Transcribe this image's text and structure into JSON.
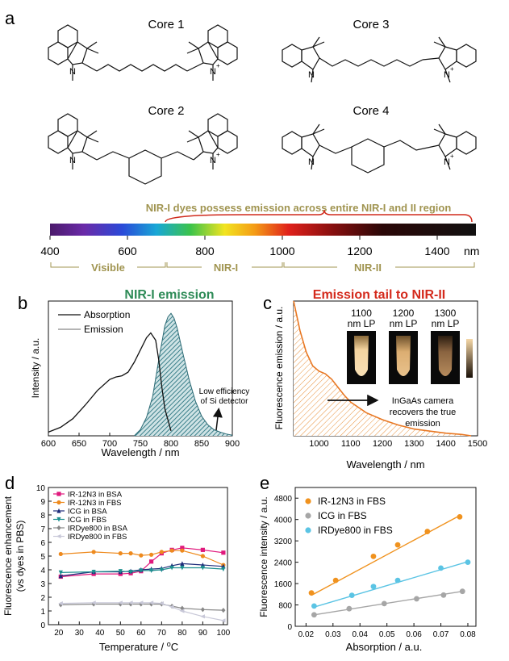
{
  "panels": {
    "a": {
      "letter": "a",
      "cores": [
        "Core 1",
        "Core 2",
        "Core 3",
        "Core 4"
      ],
      "banner": "NIR-I dyes possess emission across entire NIR-I and II region",
      "spectrum_ticks": [
        "400",
        "600",
        "800",
        "1000",
        "1200",
        "1400"
      ],
      "unit": "nm",
      "regions": [
        "Visible",
        "NIR-I",
        "NIR-II"
      ],
      "atom_n": "N",
      "atom_nplus": "N",
      "plus": "+"
    },
    "b": {
      "letter": "b",
      "title": "NIR-I emission",
      "xlabel": "Wavelength / nm",
      "ylabel": "Intensity / a.u.",
      "legend": [
        "Absorption",
        "Emission"
      ],
      "annotation_line1": "Low efficiency",
      "annotation_line2": "of Si detector",
      "colors": {
        "title": "#2e8b57",
        "fill": "#4a8f99"
      }
    },
    "c": {
      "letter": "c",
      "title": "Emission tail to NIR-II",
      "xlabel": "Wavelength / nm",
      "ylabel": "Fluorescence emission / a.u.",
      "tubes": [
        {
          "line1": "1100",
          "line2": "nm LP"
        },
        {
          "line1": "1200",
          "line2": "nm LP"
        },
        {
          "line1": "1300",
          "line2": "nm LP"
        }
      ],
      "annotation": [
        "InGaAs camera",
        "recovers the true",
        "emission"
      ],
      "colors": {
        "title": "#d42a1c",
        "curve": "#e87722"
      }
    },
    "d": {
      "letter": "d",
      "xlabel_main": "Temperature / ",
      "xlabel_sup": "o",
      "xlabel_end": "C",
      "ylabel_line1": "Fluorescence enhancement",
      "ylabel_line2": "(vs dyes in PBS)"
    },
    "e": {
      "letter": "e",
      "xlabel": "Absorption / a.u.",
      "ylabel": "Fluorescence intensity / a.u."
    }
  },
  "chart_data": [
    {
      "id": "b",
      "type": "line",
      "x_ticks": [
        600,
        650,
        700,
        750,
        800,
        850,
        900
      ],
      "xlim": [
        600,
        900
      ],
      "ylim": [
        0,
        1.1
      ],
      "series": [
        {
          "name": "Absorption",
          "color": "#111111",
          "x": [
            600,
            620,
            640,
            660,
            680,
            700,
            710,
            720,
            730,
            740,
            750,
            760,
            767,
            775,
            780,
            785,
            790,
            800
          ],
          "y": [
            0.03,
            0.07,
            0.14,
            0.25,
            0.37,
            0.46,
            0.48,
            0.49,
            0.52,
            0.6,
            0.7,
            0.8,
            0.84,
            0.78,
            0.62,
            0.4,
            0.22,
            0.04
          ]
        },
        {
          "name": "Emission",
          "color": "#888888",
          "x": [
            740,
            750,
            760,
            770,
            780,
            790,
            795,
            800,
            805,
            810,
            820,
            830,
            840,
            850,
            860,
            870,
            880,
            890,
            900
          ],
          "y": [
            0.0,
            0.05,
            0.15,
            0.32,
            0.62,
            0.9,
            0.97,
            1.0,
            0.96,
            0.88,
            0.66,
            0.45,
            0.28,
            0.16,
            0.09,
            0.05,
            0.03,
            0.015,
            0.005
          ]
        }
      ]
    },
    {
      "id": "c",
      "type": "area",
      "x_ticks": [
        1000,
        1100,
        1200,
        1300,
        1400,
        1500
      ],
      "xlim": [
        920,
        1500
      ],
      "ylim": [
        0,
        1
      ],
      "series": [
        {
          "name": "",
          "x": [
            920,
            940,
            960,
            980,
            1000,
            1020,
            1040,
            1060,
            1080,
            1100,
            1150,
            1200,
            1250,
            1300,
            1350,
            1400,
            1450,
            1480
          ],
          "y": [
            1.0,
            0.78,
            0.62,
            0.52,
            0.48,
            0.46,
            0.42,
            0.36,
            0.3,
            0.25,
            0.17,
            0.12,
            0.08,
            0.05,
            0.035,
            0.02,
            0.01,
            0.0
          ]
        }
      ]
    },
    {
      "id": "d",
      "type": "line",
      "x_ticks": [
        20,
        30,
        40,
        50,
        60,
        70,
        80,
        90,
        100
      ],
      "y_ticks": [
        0,
        1,
        2,
        3,
        4,
        5,
        6,
        7,
        8,
        9,
        10
      ],
      "xlim": [
        15,
        102
      ],
      "ylim": [
        0,
        10
      ],
      "series": [
        {
          "name": "IR-12N3 in BSA",
          "color": "#e0197d",
          "marker": "square",
          "x": [
            21,
            37,
            50,
            55,
            60,
            65,
            70,
            75,
            80,
            90,
            100
          ],
          "y": [
            3.5,
            3.7,
            3.7,
            3.75,
            3.9,
            4.6,
            5.2,
            5.45,
            5.6,
            5.45,
            5.25
          ]
        },
        {
          "name": "IR-12N3 in FBS",
          "color": "#ee8a1e",
          "marker": "circle",
          "x": [
            21,
            37,
            50,
            55,
            60,
            65,
            70,
            75,
            80,
            90,
            100
          ],
          "y": [
            5.15,
            5.3,
            5.2,
            5.2,
            5.05,
            5.1,
            5.3,
            5.4,
            5.4,
            5.0,
            4.35
          ]
        },
        {
          "name": "ICG in BSA",
          "color": "#1f2d7a",
          "marker": "triangle-up",
          "x": [
            21,
            37,
            50,
            55,
            60,
            65,
            70,
            75,
            80,
            90,
            100
          ],
          "y": [
            3.55,
            3.85,
            3.85,
            3.9,
            4.0,
            4.05,
            4.1,
            4.3,
            4.45,
            4.35,
            4.25
          ]
        },
        {
          "name": "ICG in FBS",
          "color": "#1d8f8f",
          "marker": "triangle-down",
          "x": [
            21,
            37,
            50,
            55,
            60,
            65,
            70,
            75,
            80,
            90,
            100
          ],
          "y": [
            3.8,
            3.85,
            3.9,
            3.85,
            3.95,
            3.95,
            4.0,
            4.15,
            4.15,
            4.15,
            4.05
          ]
        },
        {
          "name": "IRDye800 in BSA",
          "color": "#888888",
          "marker": "diamond",
          "x": [
            21,
            37,
            50,
            55,
            60,
            65,
            70,
            75,
            80,
            90,
            100
          ],
          "y": [
            1.45,
            1.5,
            1.5,
            1.5,
            1.5,
            1.5,
            1.5,
            1.35,
            1.2,
            1.1,
            1.05
          ]
        },
        {
          "name": "IRDye800 in FBS",
          "color": "#c8c8d8",
          "marker": "triangle-left",
          "x": [
            21,
            37,
            50,
            55,
            60,
            65,
            70,
            75,
            80,
            90,
            100
          ],
          "y": [
            1.55,
            1.6,
            1.6,
            1.6,
            1.6,
            1.6,
            1.55,
            1.3,
            1.0,
            0.6,
            0.3
          ]
        }
      ]
    },
    {
      "id": "e",
      "type": "scatter",
      "x_ticks": [
        0.02,
        0.03,
        0.04,
        0.05,
        0.06,
        0.07,
        0.08
      ],
      "y_ticks": [
        0,
        800,
        1600,
        2400,
        3200,
        4000,
        4800
      ],
      "xlim": [
        0.016,
        0.083
      ],
      "ylim": [
        0,
        5200
      ],
      "series": [
        {
          "name": "IR-12N3 in FBS",
          "color": "#f0921e",
          "x": [
            0.022,
            0.031,
            0.045,
            0.054,
            0.065,
            0.077
          ],
          "y": [
            1250,
            1720,
            2620,
            3050,
            3550,
            4100
          ],
          "fit": [
            [
              0.022,
              1160
            ],
            [
              0.077,
              4150
            ]
          ]
        },
        {
          "name": "ICG in FBS",
          "color": "#a6a6a6",
          "x": [
            0.023,
            0.036,
            0.049,
            0.061,
            0.071,
            0.078
          ],
          "y": [
            430,
            660,
            850,
            1030,
            1170,
            1310
          ],
          "fit": [
            [
              0.023,
              430
            ],
            [
              0.078,
              1310
            ]
          ]
        },
        {
          "name": "IRDye800 in FBS",
          "color": "#5bc4e4",
          "x": [
            0.023,
            0.037,
            0.045,
            0.054,
            0.07,
            0.08
          ],
          "y": [
            760,
            1160,
            1490,
            1720,
            2180,
            2400
          ],
          "fit": [
            [
              0.023,
              720
            ],
            [
              0.08,
              2420
            ]
          ]
        }
      ]
    }
  ]
}
